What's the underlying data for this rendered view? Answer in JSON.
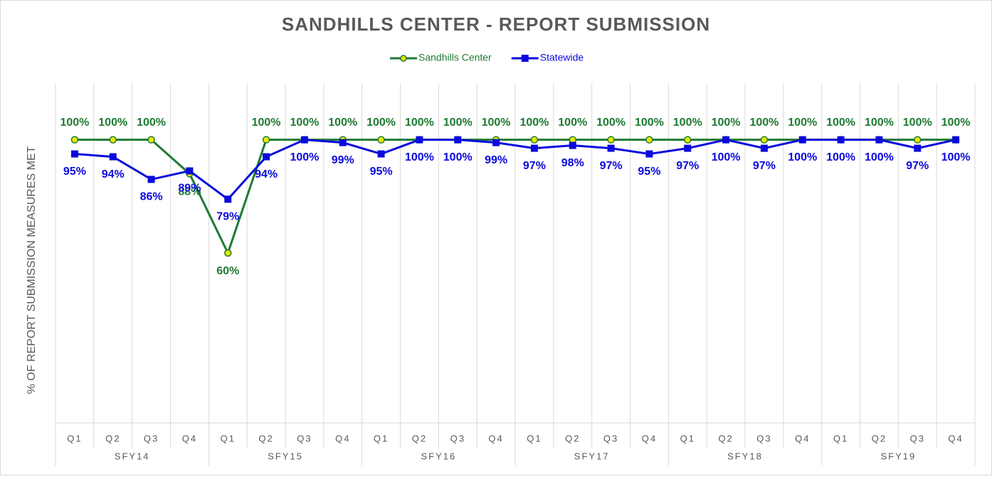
{
  "chart_data": {
    "type": "line",
    "title": "SANDHILLS CENTER - REPORT SUBMISSION",
    "y_axis_label": "% OF REPORT SUBMISSION MEASURES MET",
    "categories": [
      "Q1",
      "Q2",
      "Q3",
      "Q4",
      "Q1",
      "Q2",
      "Q3",
      "Q4",
      "Q1",
      "Q2",
      "Q3",
      "Q4",
      "Q1",
      "Q2",
      "Q3",
      "Q4",
      "Q1",
      "Q2",
      "Q3",
      "Q4",
      "Q1",
      "Q2",
      "Q3",
      "Q4"
    ],
    "category_groups": [
      "SFY14",
      "SFY15",
      "SFY16",
      "SFY17",
      "SFY18",
      "SFY19"
    ],
    "ylim": [
      0,
      120
    ],
    "legend": "top",
    "series": [
      {
        "name": "Sandhills Center",
        "color": "#1f7a33",
        "marker_fill": "#e8e800",
        "values": [
          100,
          100,
          100,
          88,
          60,
          100,
          100,
          100,
          100,
          100,
          100,
          100,
          100,
          100,
          100,
          100,
          100,
          100,
          100,
          100,
          100,
          100,
          100,
          100
        ],
        "value_labels": [
          "100%",
          "100%",
          "100%",
          "88%",
          "60%",
          "100%",
          "100%",
          "100%",
          "100%",
          "100%",
          "100%",
          "100%",
          "100%",
          "100%",
          "100%",
          "100%",
          "100%",
          "100%",
          "100%",
          "100%",
          "100%",
          "100%",
          "100%",
          "100%"
        ]
      },
      {
        "name": "Statewide",
        "color": "#0a0adc",
        "values": [
          95,
          94,
          86,
          89,
          79,
          94,
          100,
          99,
          95,
          100,
          100,
          99,
          97,
          98,
          97,
          95,
          97,
          100,
          97,
          100,
          100,
          100,
          97,
          100
        ],
        "value_labels": [
          "95%",
          "94%",
          "86%",
          "89%",
          "79%",
          "94%",
          "100%",
          "99%",
          "95%",
          "100%",
          "100%",
          "99%",
          "97%",
          "98%",
          "97%",
          "95%",
          "97%",
          "100%",
          "97%",
          "100%",
          "100%",
          "100%",
          "97%",
          "100%"
        ]
      }
    ]
  }
}
